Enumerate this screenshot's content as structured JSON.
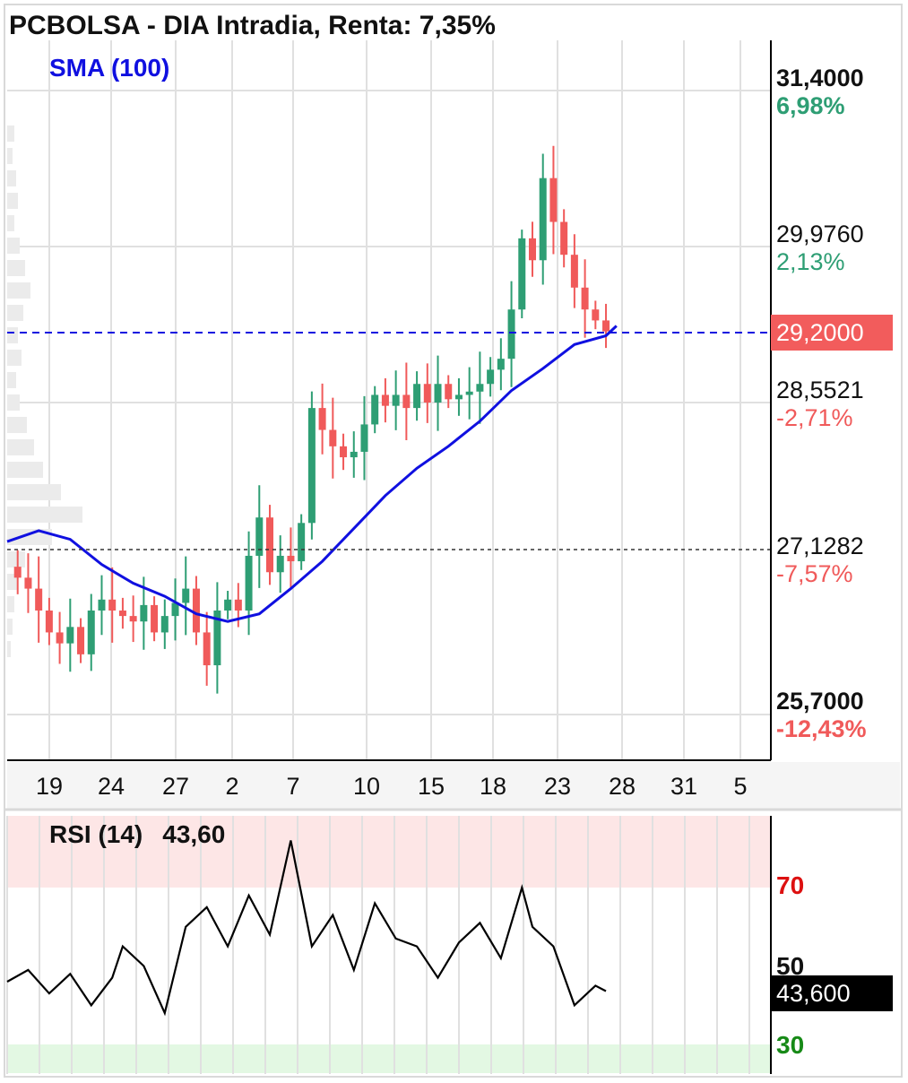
{
  "header": {
    "title": "PCBOLSA - DIA Intradia, Renta: 7,35%"
  },
  "indicators": {
    "sma_label": "SMA (100)",
    "rsi_label": "RSI (14)",
    "rsi_value": "43,60"
  },
  "price_axis": {
    "top_price": "31,4000",
    "top_pct": "6,98%",
    "p2_price": "29,9760",
    "p2_pct": "2,13%",
    "current_price": "29,2000",
    "p3_price": "28,5521",
    "p3_pct": "-2,71%",
    "ref_price": "27,1282",
    "ref_pct": "-7,57%",
    "bottom_price": "25,7000",
    "bottom_pct": "-12,43%"
  },
  "rsi_axis": {
    "level_70": "70",
    "level_50": "50",
    "level_30": "30",
    "current": "43,600"
  },
  "x_axis": {
    "ticks": [
      "19",
      "24",
      "27",
      "2",
      "7",
      "10",
      "15",
      "18",
      "23",
      "28",
      "31",
      "5"
    ]
  },
  "colors": {
    "up": "#2e9e74",
    "down": "#f05a5a",
    "sma": "#1010e0",
    "current_line": "#1010e0",
    "rsi": "#000000"
  },
  "chart_data": [
    {
      "type": "candlestick",
      "title": "PCBOLSA - DIA Intradia, Renta: 7,35%",
      "x_tick_labels": [
        "19",
        "24",
        "27",
        "2",
        "7",
        "10",
        "15",
        "18",
        "23",
        "28",
        "31",
        "5"
      ],
      "ylim": [
        25.7,
        31.4
      ],
      "y_tick_labels": [
        "31,4000",
        "29,9760",
        "28,5521",
        "27,1282",
        "25,7000"
      ],
      "current_price": 29.2,
      "reference_price": 27.1282,
      "series": [
        {
          "name": "SMA (100)",
          "points": [
            [
              0,
              27.28
            ],
            [
              3,
              27.38
            ],
            [
              6,
              27.3
            ],
            [
              9,
              27.07
            ],
            [
              12,
              26.9
            ],
            [
              15,
              26.78
            ],
            [
              18,
              26.62
            ],
            [
              21,
              26.55
            ],
            [
              24,
              26.62
            ],
            [
              27,
              26.85
            ],
            [
              30,
              27.1
            ],
            [
              33,
              27.4
            ],
            [
              36,
              27.7
            ],
            [
              39,
              27.95
            ],
            [
              42,
              28.15
            ],
            [
              45,
              28.38
            ],
            [
              48,
              28.66
            ],
            [
              51,
              28.86
            ],
            [
              54,
              29.08
            ],
            [
              57,
              29.16
            ],
            [
              58,
              29.25
            ]
          ]
        }
      ],
      "price_path": [
        [
          0,
          27.05
        ],
        [
          1,
          26.95
        ],
        [
          2,
          26.85
        ],
        [
          3,
          26.65
        ],
        [
          4,
          26.45
        ],
        [
          5,
          26.35
        ],
        [
          6,
          26.5
        ],
        [
          7,
          26.25
        ],
        [
          8,
          26.65
        ],
        [
          9,
          26.75
        ],
        [
          10,
          26.65
        ],
        [
          11,
          26.6
        ],
        [
          12,
          26.55
        ],
        [
          13,
          26.7
        ],
        [
          14,
          26.45
        ],
        [
          15,
          26.6
        ],
        [
          16,
          26.72
        ],
        [
          17,
          26.85
        ],
        [
          18,
          26.45
        ],
        [
          19,
          26.15
        ],
        [
          20,
          26.65
        ],
        [
          21,
          26.75
        ],
        [
          22,
          26.65
        ],
        [
          23,
          27.15
        ],
        [
          24,
          27.5
        ],
        [
          25,
          27.0
        ],
        [
          26,
          27.15
        ],
        [
          27,
          27.1
        ],
        [
          28,
          27.45
        ],
        [
          29,
          28.5
        ],
        [
          30,
          28.3
        ],
        [
          31,
          28.15
        ],
        [
          32,
          28.05
        ],
        [
          33,
          28.1
        ],
        [
          34,
          28.35
        ],
        [
          35,
          28.62
        ],
        [
          36,
          28.52
        ],
        [
          37,
          28.62
        ],
        [
          38,
          28.5
        ],
        [
          39,
          28.72
        ],
        [
          40,
          28.55
        ],
        [
          41,
          28.72
        ],
        [
          42,
          28.58
        ],
        [
          43,
          28.62
        ],
        [
          44,
          28.65
        ],
        [
          45,
          28.72
        ],
        [
          46,
          28.85
        ],
        [
          47,
          28.95
        ],
        [
          48,
          29.4
        ],
        [
          49,
          30.05
        ],
        [
          50,
          29.85
        ],
        [
          51,
          30.6
        ],
        [
          52,
          30.2
        ],
        [
          53,
          29.9
        ],
        [
          54,
          29.6
        ],
        [
          55,
          29.4
        ],
        [
          56,
          29.3
        ],
        [
          57,
          29.2
        ]
      ]
    },
    {
      "type": "line",
      "title": "RSI (14)",
      "ylim": [
        0,
        100
      ],
      "levels": [
        70,
        50,
        30
      ],
      "current": 43.6,
      "series": [
        {
          "name": "RSI (14)",
          "points": [
            [
              0,
              46
            ],
            [
              2,
              49
            ],
            [
              4,
              43
            ],
            [
              6,
              48
            ],
            [
              8,
              40
            ],
            [
              10,
              47
            ],
            [
              11,
              55
            ],
            [
              13,
              50
            ],
            [
              15,
              38
            ],
            [
              17,
              60
            ],
            [
              19,
              65
            ],
            [
              21,
              55
            ],
            [
              23,
              68
            ],
            [
              25,
              58
            ],
            [
              27,
              82
            ],
            [
              29,
              55
            ],
            [
              31,
              63
            ],
            [
              33,
              49
            ],
            [
              35,
              66
            ],
            [
              37,
              57
            ],
            [
              39,
              55
            ],
            [
              41,
              47
            ],
            [
              43,
              56
            ],
            [
              45,
              61
            ],
            [
              47,
              52
            ],
            [
              49,
              70
            ],
            [
              50,
              60
            ],
            [
              52,
              55
            ],
            [
              54,
              40
            ],
            [
              56,
              45
            ],
            [
              57,
              43.6
            ]
          ]
        }
      ]
    }
  ]
}
